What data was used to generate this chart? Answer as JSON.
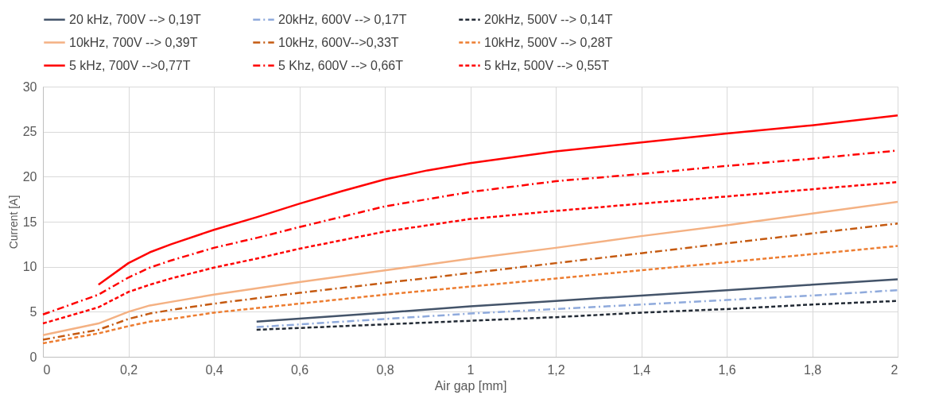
{
  "chart_data": {
    "type": "line",
    "xlabel": "Air gap [mm]",
    "ylabel": "Current [A]",
    "xlim": [
      0,
      2
    ],
    "ylim": [
      0,
      30
    ],
    "xticks": [
      0,
      {
        "value": 0.2,
        "label": "0,2"
      },
      {
        "value": 0.4,
        "label": "0,4"
      },
      {
        "value": 0.6,
        "label": "0,6"
      },
      {
        "value": 0.8,
        "label": "0,8"
      },
      1,
      {
        "value": 1.2,
        "label": "1,2"
      },
      {
        "value": 1.4,
        "label": "1,4"
      },
      {
        "value": 1.6,
        "label": "1,6"
      },
      {
        "value": 1.8,
        "label": "1,8"
      },
      2
    ],
    "yticks": [
      0,
      5,
      10,
      15,
      20,
      25,
      30
    ],
    "grid": true,
    "legend": "top",
    "marker": "none",
    "series": [
      {
        "name": "20 kHz, 700V --> 0,19T",
        "color": "#44546a",
        "line_style": "solid",
        "x": [
          0.5,
          0.8,
          1.0,
          1.2,
          1.4,
          1.6,
          1.8,
          2.0
        ],
        "values": [
          3.9,
          4.9,
          5.6,
          6.2,
          6.8,
          7.4,
          8.0,
          8.6
        ]
      },
      {
        "name": "20kHz, 600V --> 0,17T",
        "color": "#8faadc",
        "line_style": "dashdot",
        "x": [
          0.5,
          0.8,
          1.0,
          1.2,
          1.4,
          1.6,
          1.8,
          2.0
        ],
        "values": [
          3.3,
          4.2,
          4.8,
          5.3,
          5.8,
          6.3,
          6.8,
          7.4
        ]
      },
      {
        "name": "20kHz, 500V --> 0,14T",
        "color": "#222a35",
        "line_style": "dashed",
        "x": [
          0.5,
          0.8,
          1.0,
          1.2,
          1.4,
          1.6,
          1.8,
          2.0
        ],
        "values": [
          3.0,
          3.6,
          4.0,
          4.4,
          4.9,
          5.3,
          5.8,
          6.2
        ]
      },
      {
        "name": "10kHz, 700V --> 0,39T",
        "color": "#f4b183",
        "line_style": "solid",
        "x": [
          0,
          0.13,
          0.2,
          0.25,
          0.3,
          0.4,
          0.6,
          0.8,
          1.0,
          1.2,
          1.4,
          1.6,
          1.8,
          2.0
        ],
        "values": [
          2.4,
          3.7,
          5.0,
          5.7,
          6.1,
          6.9,
          8.3,
          9.6,
          10.9,
          12.1,
          13.4,
          14.6,
          15.9,
          17.2
        ]
      },
      {
        "name": "10kHz, 600V-->0,33T",
        "color": "#c55a11",
        "line_style": "dashdot",
        "x": [
          0,
          0.13,
          0.2,
          0.25,
          0.3,
          0.4,
          0.6,
          0.8,
          1.0,
          1.2,
          1.4,
          1.6,
          1.8,
          2.0
        ],
        "values": [
          1.9,
          3.0,
          4.2,
          4.8,
          5.2,
          5.9,
          7.1,
          8.2,
          9.3,
          10.4,
          11.5,
          12.6,
          13.7,
          14.8
        ]
      },
      {
        "name": "10kHz, 500V --> 0,28T",
        "color": "#ed7d31",
        "line_style": "dashed",
        "x": [
          0,
          0.13,
          0.2,
          0.25,
          0.3,
          0.4,
          0.6,
          0.8,
          1.0,
          1.2,
          1.4,
          1.6,
          1.8,
          2.0
        ],
        "values": [
          1.5,
          2.6,
          3.4,
          3.9,
          4.2,
          4.9,
          5.9,
          6.9,
          7.8,
          8.7,
          9.6,
          10.5,
          11.4,
          12.3
        ]
      },
      {
        "name": "5 kHz, 700V -->0,77T",
        "color": "#ff0000",
        "line_style": "solid",
        "x": [
          0.13,
          0.2,
          0.25,
          0.3,
          0.4,
          0.5,
          0.6,
          0.7,
          0.8,
          0.9,
          1.0,
          1.2,
          1.4,
          1.6,
          1.8,
          2.0
        ],
        "values": [
          8.0,
          10.4,
          11.6,
          12.5,
          14.1,
          15.5,
          17.0,
          18.4,
          19.7,
          20.7,
          21.5,
          22.8,
          23.8,
          24.8,
          25.7,
          26.8
        ]
      },
      {
        "name": "5 Khz, 600V --> 0,66T",
        "color": "#ff0000",
        "line_style": "dashdot",
        "x": [
          0,
          0.13,
          0.2,
          0.25,
          0.3,
          0.4,
          0.5,
          0.6,
          0.8,
          1.0,
          1.2,
          1.4,
          1.6,
          1.8,
          2.0
        ],
        "values": [
          4.7,
          6.9,
          8.8,
          9.9,
          10.7,
          12.1,
          13.2,
          14.4,
          16.7,
          18.3,
          19.5,
          20.3,
          21.2,
          22.0,
          22.9
        ]
      },
      {
        "name": "5 kHz, 500V --> 0,55T",
        "color": "#ff0000",
        "line_style": "dashed",
        "x": [
          0,
          0.13,
          0.2,
          0.25,
          0.3,
          0.4,
          0.5,
          0.6,
          0.8,
          1.0,
          1.2,
          1.4,
          1.6,
          1.8,
          2.0
        ],
        "values": [
          3.7,
          5.5,
          7.2,
          8.0,
          8.7,
          9.9,
          10.9,
          12.0,
          13.9,
          15.3,
          16.2,
          17.0,
          17.8,
          18.6,
          19.4
        ]
      }
    ]
  }
}
